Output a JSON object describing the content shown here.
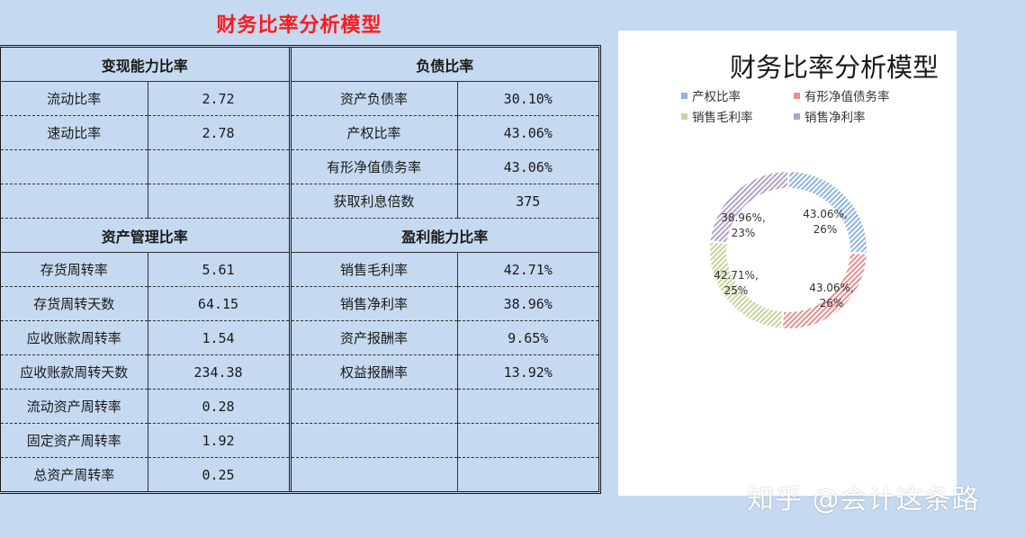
{
  "page_title": "财务比率分析模型",
  "sections": {
    "liquidity": {
      "title": "变现能力比率",
      "rows": [
        {
          "label": "流动比率",
          "value": "2.72"
        },
        {
          "label": "速动比率",
          "value": "2.78"
        },
        {
          "label": "",
          "value": ""
        },
        {
          "label": "",
          "value": ""
        }
      ]
    },
    "debt": {
      "title": "负债比率",
      "rows": [
        {
          "label": "资产负债率",
          "value": "30.10%"
        },
        {
          "label": "产权比率",
          "value": "43.06%"
        },
        {
          "label": "有形净值债务率",
          "value": "43.06%"
        },
        {
          "label": "获取利息倍数",
          "value": "375"
        }
      ]
    },
    "asset_mgmt": {
      "title": "资产管理比率",
      "rows": [
        {
          "label": "存货周转率",
          "value": "5.61"
        },
        {
          "label": "存货周转天数",
          "value": "64.15"
        },
        {
          "label": "应收账款周转率",
          "value": "1.54"
        },
        {
          "label": "应收账款周转天数",
          "value": "234.38"
        },
        {
          "label": "流动资产周转率",
          "value": "0.28"
        },
        {
          "label": "固定资产周转率",
          "value": "1.92"
        },
        {
          "label": "总资产周转率",
          "value": "0.25"
        }
      ]
    },
    "profit": {
      "title": "盈利能力比率",
      "rows": [
        {
          "label": "销售毛利率",
          "value": "42.71%"
        },
        {
          "label": "销售净利率",
          "value": "38.96%"
        },
        {
          "label": "资产报酬率",
          "value": "9.65%"
        },
        {
          "label": "权益报酬率",
          "value": "13.92%"
        },
        {
          "label": "",
          "value": ""
        },
        {
          "label": "",
          "value": ""
        },
        {
          "label": "",
          "value": ""
        }
      ]
    }
  },
  "chart_data": {
    "type": "pie",
    "variant": "donut",
    "title": "财务比率分析模型",
    "legend_position": "top",
    "categories": [
      "产权比率",
      "有形净值债务率",
      "销售毛利率",
      "销售净利率"
    ],
    "values": [
      43.06,
      43.06,
      42.71,
      38.96
    ],
    "value_labels": [
      "43.06%",
      "43.06%",
      "42.71%",
      "38.96%"
    ],
    "percent_labels": [
      "26%",
      "26%",
      "25%",
      "23%"
    ],
    "colors": [
      "#8eb4e3",
      "#e6908e",
      "#c3d69b",
      "#b3a2c7"
    ]
  },
  "watermark": "知乎 @会计这条路"
}
